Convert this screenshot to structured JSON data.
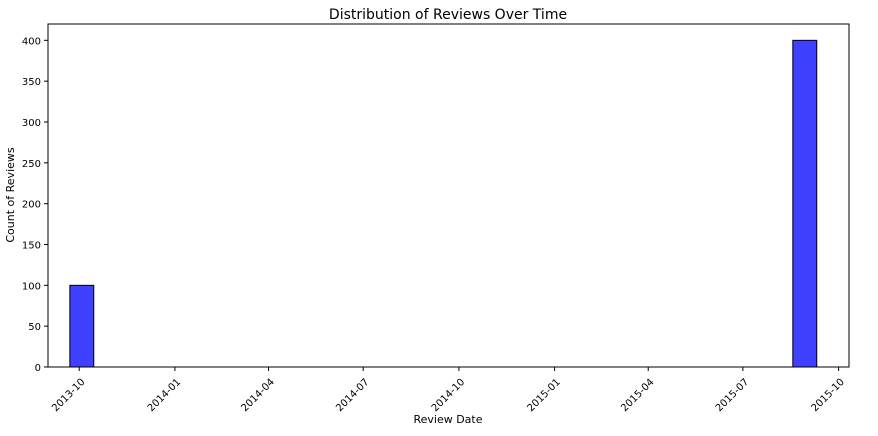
{
  "chart_data": {
    "type": "bar",
    "title": "Distribution of Reviews Over Time",
    "xlabel": "Review Date",
    "ylabel": "Count of Reviews",
    "x_axis_type": "date",
    "xlim": [
      "2013-09-01",
      "2015-10-11"
    ],
    "ylim": [
      0,
      420
    ],
    "x_ticks": [
      "2013-10",
      "2014-01",
      "2014-04",
      "2014-07",
      "2014-10",
      "2015-01",
      "2015-04",
      "2015-07",
      "2015-10"
    ],
    "y_ticks": [
      0,
      50,
      100,
      150,
      200,
      250,
      300,
      350,
      400
    ],
    "bins": [
      {
        "start": "2013-09-22",
        "end": "2013-10-15",
        "value": 100
      },
      {
        "start": "2015-08-18",
        "end": "2015-09-10",
        "value": 400
      }
    ],
    "bar_color": "#4040ff",
    "bar_edge_color": "#000000",
    "grid": false,
    "legend": false
  }
}
